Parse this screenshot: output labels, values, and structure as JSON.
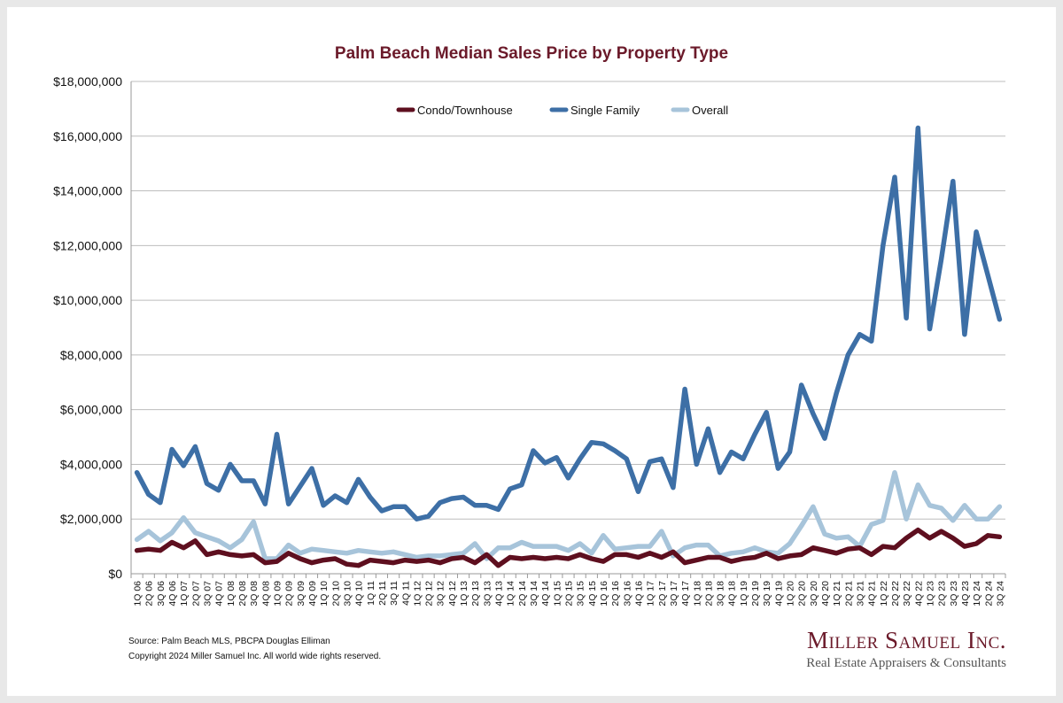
{
  "chart_data": {
    "type": "line",
    "title": "Palm Beach Median Sales Price by Property Type",
    "xlabel": "",
    "ylabel": "",
    "ylim": [
      0,
      18000000
    ],
    "yticks": [
      0,
      2000000,
      4000000,
      6000000,
      8000000,
      10000000,
      12000000,
      14000000,
      16000000,
      18000000
    ],
    "ytick_labels": [
      "$0",
      "$2,000,000",
      "$4,000,000",
      "$6,000,000",
      "$8,000,000",
      "$10,000,000",
      "$12,000,000",
      "$14,000,000",
      "$16,000,000",
      "$18,000,000"
    ],
    "grid": true,
    "legend_position": "top-center",
    "categories": [
      "1Q 06",
      "2Q 06",
      "3Q 06",
      "4Q 06",
      "1Q 07",
      "2Q 07",
      "3Q 07",
      "4Q 07",
      "1Q 08",
      "2Q 08",
      "3Q 08",
      "4Q 08",
      "1Q 09",
      "2Q 09",
      "3Q 09",
      "4Q 09",
      "1Q 10",
      "2Q 10",
      "3Q 10",
      "4Q 10",
      "1Q 11",
      "2Q 11",
      "3Q 11",
      "4Q 11",
      "1Q 12",
      "2Q 12",
      "3Q 12",
      "4Q 12",
      "1Q 13",
      "2Q 13",
      "3Q 13",
      "4Q 13",
      "1Q 14",
      "2Q 14",
      "3Q 14",
      "4Q 14",
      "1Q 15",
      "2Q 15",
      "3Q 15",
      "4Q 15",
      "1Q 16",
      "2Q 16",
      "3Q 16",
      "4Q 16",
      "1Q 17",
      "2Q 17",
      "3Q 17",
      "4Q 17",
      "1Q 18",
      "2Q 18",
      "3Q 18",
      "4Q 18",
      "1Q 19",
      "2Q 19",
      "3Q 19",
      "4Q 19",
      "1Q 20",
      "2Q 20",
      "3Q 20",
      "4Q 20",
      "1Q 21",
      "2Q 21",
      "3Q 21",
      "4Q 21",
      "1Q 22",
      "2Q 22",
      "3Q 22",
      "4Q 22",
      "1Q 23",
      "2Q 23",
      "3Q 23",
      "4Q 23",
      "1Q 24",
      "2Q 24",
      "3Q 24"
    ],
    "series": [
      {
        "name": "Condo/Townhouse",
        "color": "#5e0f1f",
        "values": [
          850000,
          900000,
          850000,
          1150000,
          950000,
          1200000,
          700000,
          800000,
          700000,
          650000,
          700000,
          400000,
          450000,
          750000,
          550000,
          400000,
          500000,
          550000,
          350000,
          300000,
          500000,
          450000,
          400000,
          500000,
          450000,
          500000,
          400000,
          550000,
          600000,
          400000,
          700000,
          300000,
          600000,
          550000,
          600000,
          550000,
          600000,
          550000,
          700000,
          550000,
          450000,
          700000,
          700000,
          600000,
          750000,
          600000,
          800000,
          400000,
          500000,
          600000,
          600000,
          450000,
          550000,
          600000,
          750000,
          550000,
          650000,
          700000,
          950000,
          850000,
          750000,
          900000,
          950000,
          700000,
          1000000,
          950000,
          1300000,
          1600000,
          1300000,
          1550000,
          1300000,
          1000000,
          1100000,
          1400000,
          1350000
        ]
      },
      {
        "name": "Single Family",
        "color": "#3d6fa6",
        "values": [
          3700000,
          2900000,
          2600000,
          4550000,
          3950000,
          4650000,
          3300000,
          3050000,
          4000000,
          3400000,
          3400000,
          2550000,
          5100000,
          2550000,
          3200000,
          3850000,
          2500000,
          2850000,
          2600000,
          3450000,
          2800000,
          2300000,
          2450000,
          2450000,
          2000000,
          2100000,
          2600000,
          2750000,
          2800000,
          2500000,
          2500000,
          2350000,
          3100000,
          3250000,
          4500000,
          4050000,
          4250000,
          3500000,
          4200000,
          4800000,
          4750000,
          4500000,
          4200000,
          3000000,
          4100000,
          4200000,
          3150000,
          6750000,
          4000000,
          5300000,
          3700000,
          4450000,
          4200000,
          5100000,
          5900000,
          3850000,
          4450000,
          6900000,
          5850000,
          4950000,
          6600000,
          8000000,
          8750000,
          8500000,
          12000000,
          14500000,
          9350000,
          16300000,
          8950000,
          11500000,
          14350000,
          8750000,
          12500000,
          10900000,
          9300000
        ]
      },
      {
        "name": "Overall",
        "color": "#a7c4da",
        "values": [
          1250000,
          1550000,
          1200000,
          1500000,
          2050000,
          1500000,
          1350000,
          1200000,
          950000,
          1250000,
          1900000,
          550000,
          550000,
          1050000,
          750000,
          900000,
          850000,
          800000,
          750000,
          850000,
          800000,
          750000,
          800000,
          700000,
          600000,
          650000,
          650000,
          700000,
          750000,
          1100000,
          550000,
          950000,
          950000,
          1150000,
          1000000,
          1000000,
          1000000,
          850000,
          1100000,
          750000,
          1400000,
          900000,
          950000,
          1000000,
          1000000,
          1550000,
          650000,
          950000,
          1050000,
          1050000,
          650000,
          750000,
          800000,
          950000,
          800000,
          750000,
          1100000,
          1750000,
          2450000,
          1450000,
          1300000,
          1350000,
          1000000,
          1800000,
          1950000,
          3700000,
          2000000,
          3250000,
          2500000,
          2400000,
          1950000,
          2500000,
          2000000,
          2000000,
          2450000
        ]
      }
    ]
  },
  "footer": {
    "source": "Source: Palm Beach MLS, PBCPA Douglas Elliman",
    "copyright": "Copyright 2024 Miller Samuel Inc.  All world wide rights reserved."
  },
  "logo": {
    "name": "Miller Samuel Inc.",
    "tagline": "Real Estate Appraisers & Consultants"
  }
}
